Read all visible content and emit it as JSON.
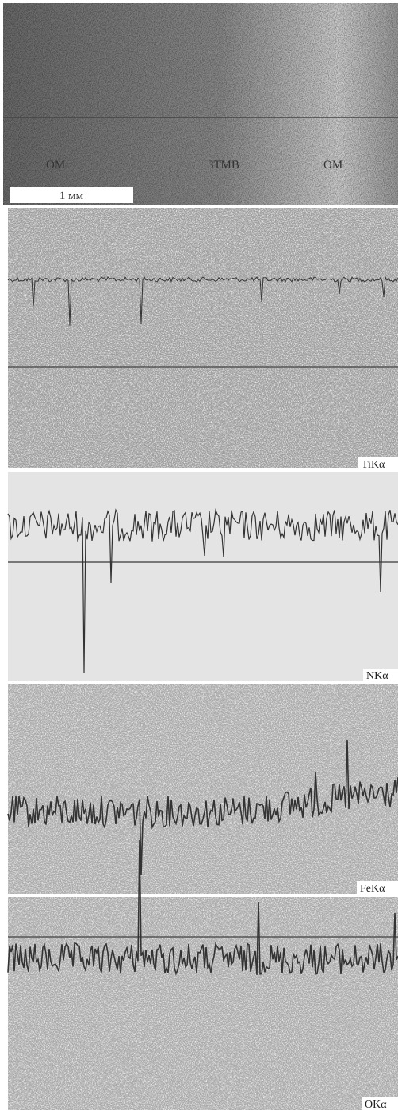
{
  "panels": [
    {
      "labels": [
        "ОМ",
        "ЗТМВ",
        "ОМ"
      ],
      "scale_bar": "1 мм"
    },
    {
      "label": "TiKα"
    },
    {
      "label": "NKα"
    },
    {
      "label": "FeKα"
    },
    {
      "label": "OKα"
    }
  ]
}
